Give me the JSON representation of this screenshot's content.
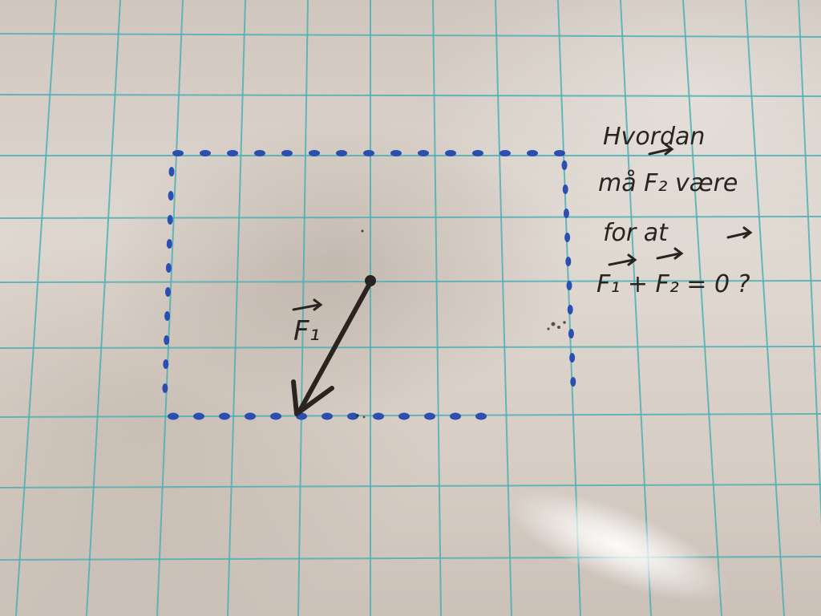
{
  "scene": {
    "description_colors": {
      "board": "#dcd4cc",
      "grid_lines": "#4fb0b6",
      "dotted_rectangle": "#2b4fb0",
      "marker_ink": "#2a2420"
    }
  },
  "annotations": {
    "vector_label": "F₁",
    "question_lines": [
      "Hvordan",
      "må F₂ være",
      "for at",
      "F₁ + F₂ = 0 ?"
    ]
  }
}
